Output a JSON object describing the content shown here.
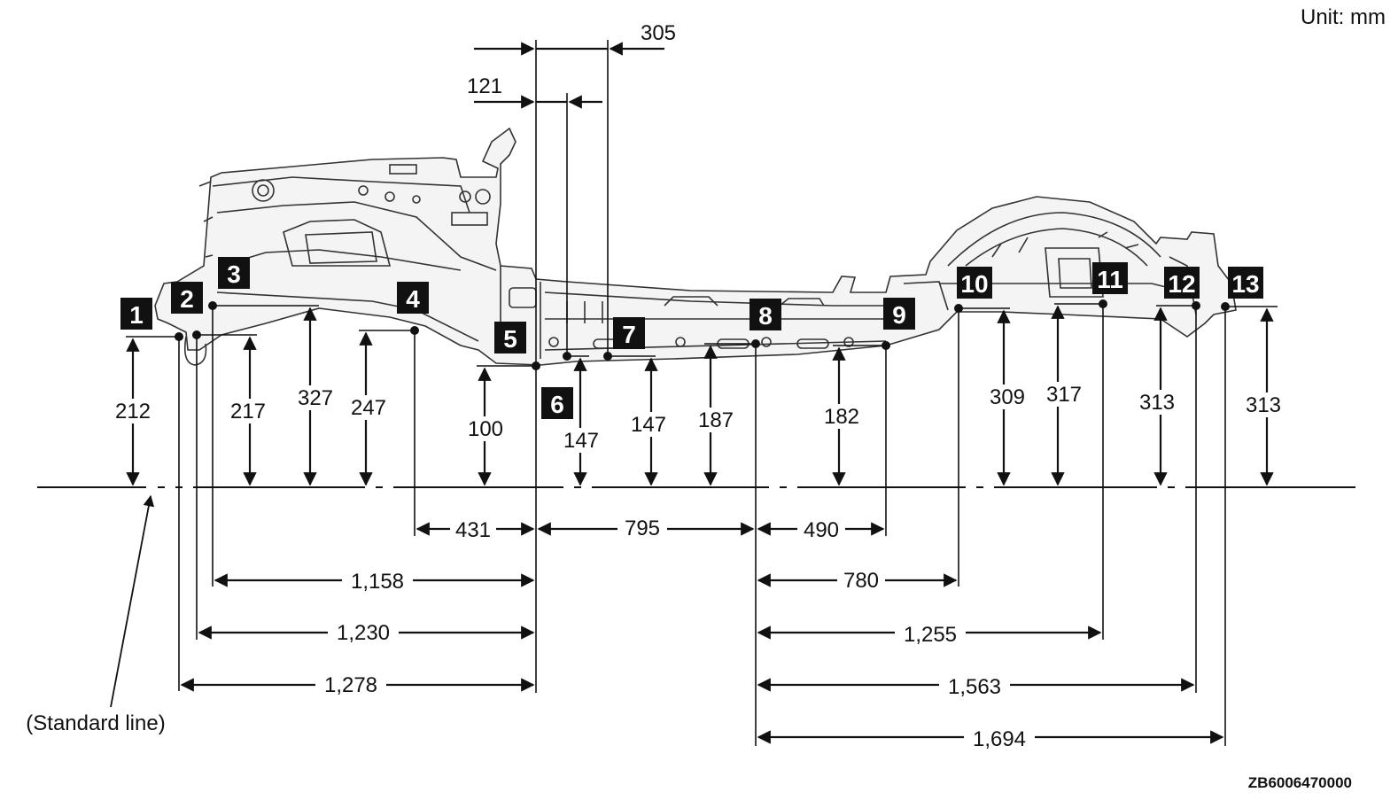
{
  "unit_label": "Unit: mm",
  "reference_code": "ZB6006470000",
  "standard_line_label": "(Standard line)",
  "points": [
    {
      "id": "1",
      "height": "212"
    },
    {
      "id": "2",
      "height": "217"
    },
    {
      "id": "3",
      "height": "327"
    },
    {
      "id": "4",
      "height": "247"
    },
    {
      "id": "5",
      "height": "100"
    },
    {
      "id": "6",
      "height": "147"
    },
    {
      "id": "7",
      "height": "147"
    },
    {
      "id": "8",
      "height": "187"
    },
    {
      "id": "9",
      "height": "182"
    },
    {
      "id": "10",
      "height": "309"
    },
    {
      "id": "11",
      "height": "317"
    },
    {
      "id": "12",
      "height": "313"
    },
    {
      "id": "13",
      "height": "313"
    }
  ],
  "top_dimensions": [
    "305",
    "121"
  ],
  "horizontal_dimensions": [
    "431",
    "795",
    "490",
    "1,158",
    "780",
    "1,230",
    "1,255",
    "1,278",
    "1,563",
    "1,694"
  ]
}
